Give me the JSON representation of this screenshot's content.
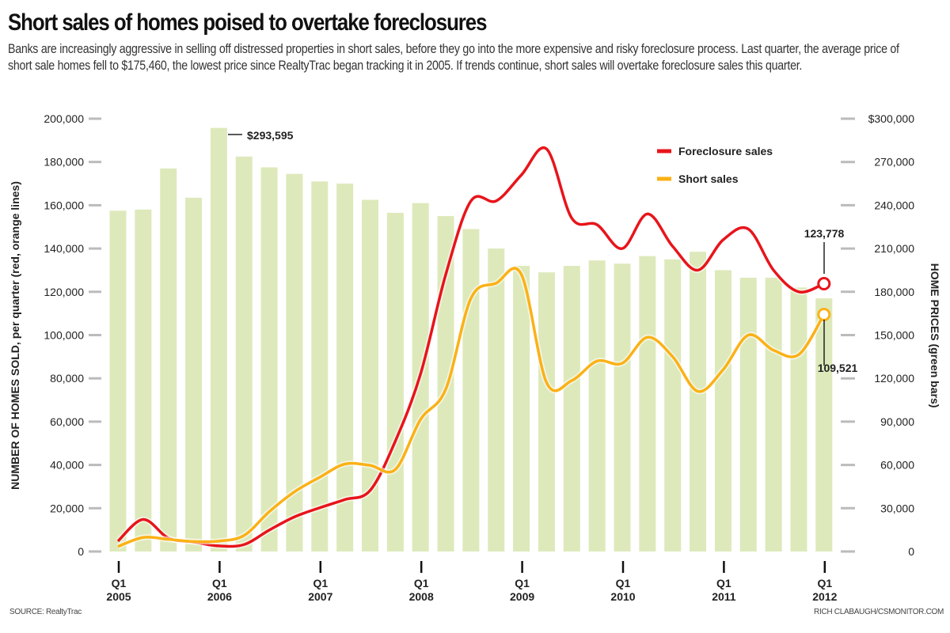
{
  "title": "Short sales of homes poised to overtake foreclosures",
  "subtitle": "Banks are increasingly aggressive in selling off distressed properties in short sales, before they go into the more expensive and risky foreclosure process. Last quarter, the average price of short sale homes fell to $175,460, the lowest price since RealtyTrac began tracking it in 2005. If trends continue, short sales will overtake foreclosure sales this quarter.",
  "source": "SOURCE: RealtyTrac",
  "credit": "RICH CLABAUGH/CSMONITOR.COM",
  "colors": {
    "foreclosure": "#e8141b",
    "short": "#fbb116",
    "bars": "#dde9bb"
  },
  "chart_data": {
    "type": "bar+line",
    "title": "Short sales of homes poised to overtake foreclosures",
    "ylabel": "NUMBER OF HOMES SOLD, per quarter (red, orange lines)",
    "y2label": "HOME PRICES (green bars)",
    "ylim": [
      0,
      200000
    ],
    "y2lim": [
      0,
      300000
    ],
    "yticks": [
      "0",
      "20,000",
      "40,000",
      "60,000",
      "80,000",
      "100,000",
      "120,000",
      "140,000",
      "160,000",
      "180,000",
      "200,000"
    ],
    "y2ticks": [
      "0",
      "30,000",
      "60,000",
      "90,000",
      "120,000",
      "150,000",
      "180,000",
      "210,000",
      "240,000",
      "270,000",
      "$300,000"
    ],
    "xticks": [
      {
        "q": "Q1",
        "y": "2005"
      },
      {
        "q": "Q1",
        "y": "2006"
      },
      {
        "q": "Q1",
        "y": "2007"
      },
      {
        "q": "Q1",
        "y": "2008"
      },
      {
        "q": "Q1",
        "y": "2009"
      },
      {
        "q": "Q1",
        "y": "2010"
      },
      {
        "q": "Q1",
        "y": "2011"
      },
      {
        "q": "Q1",
        "y": "2012"
      }
    ],
    "legend": {
      "position": "top-right",
      "entries": [
        "Foreclosure sales",
        "Short sales"
      ]
    },
    "annotations": {
      "peak_price": "$293,595",
      "last_foreclosure": "123,778",
      "last_short": "109,521"
    },
    "quarters": [
      "2005Q1",
      "2005Q2",
      "2005Q3",
      "2005Q4",
      "2006Q1",
      "2006Q2",
      "2006Q3",
      "2006Q4",
      "2007Q1",
      "2007Q2",
      "2007Q3",
      "2007Q4",
      "2008Q1",
      "2008Q2",
      "2008Q3",
      "2008Q4",
      "2009Q1",
      "2009Q2",
      "2009Q3",
      "2009Q4",
      "2010Q1",
      "2010Q2",
      "2010Q3",
      "2010Q4",
      "2011Q1",
      "2011Q2",
      "2011Q3",
      "2011Q4",
      "2012Q1"
    ],
    "series": [
      {
        "name": "Home prices",
        "type": "bar",
        "axis": "right",
        "values": [
          236250,
          237000,
          265500,
          245250,
          293595,
          273750,
          266250,
          261750,
          256500,
          255000,
          243750,
          234750,
          241500,
          232500,
          223500,
          210000,
          198000,
          193500,
          198000,
          201750,
          199500,
          204750,
          202500,
          207750,
          195000,
          189750,
          189750,
          183000,
          175460
        ]
      },
      {
        "name": "Foreclosure sales",
        "type": "line",
        "axis": "left",
        "values": [
          4800,
          14800,
          6200,
          4400,
          2600,
          3200,
          9900,
          16000,
          20200,
          24000,
          28200,
          51000,
          82000,
          128000,
          162000,
          162000,
          174000,
          186000,
          154000,
          151000,
          140000,
          156000,
          141000,
          130000,
          144000,
          149000,
          130000,
          120000,
          123778
        ]
      },
      {
        "name": "Short sales",
        "type": "line",
        "axis": "left",
        "values": [
          2300,
          6500,
          5600,
          4600,
          4800,
          7400,
          18400,
          27600,
          34300,
          40400,
          39800,
          37900,
          61000,
          75000,
          117000,
          124000,
          128000,
          78000,
          79000,
          88000,
          87000,
          99000,
          90000,
          74000,
          84000,
          100000,
          93000,
          91000,
          109521
        ]
      }
    ]
  }
}
